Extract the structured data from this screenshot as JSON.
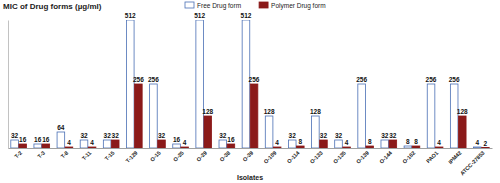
{
  "chart_data": {
    "type": "bar",
    "title": "MIC of Drug forms (µg/ml)",
    "x_label": "Isolates",
    "categories": [
      "T-2",
      "T-3",
      "T-8",
      "T-11",
      "T-15",
      "T-129",
      "O-15",
      "O-25",
      "O-29",
      "O-38",
      "O-39",
      "O-109",
      "O-114",
      "O-133",
      "O-135",
      "O-139",
      "O-144",
      "O-162",
      "PAO1",
      "IPM42",
      "ATCC-27853"
    ],
    "series": [
      {
        "name": "Free Drug form",
        "color": "#4a6fb5",
        "values": [
          32,
          16,
          64,
          32,
          32,
          512,
          256,
          16,
          512,
          32,
          512,
          128,
          32,
          128,
          32,
          256,
          32,
          8,
          256,
          256,
          4
        ]
      },
      {
        "name": "Polymer Drug form",
        "color": "#8b1a1a",
        "values": [
          16,
          16,
          4,
          4,
          32,
          256,
          32,
          4,
          128,
          16,
          256,
          4,
          8,
          32,
          4,
          8,
          32,
          8,
          4,
          128,
          2
        ]
      }
    ],
    "ylim": [
      0,
      512
    ],
    "data_labels": true,
    "tick_labels": "x",
    "legend": "top"
  }
}
